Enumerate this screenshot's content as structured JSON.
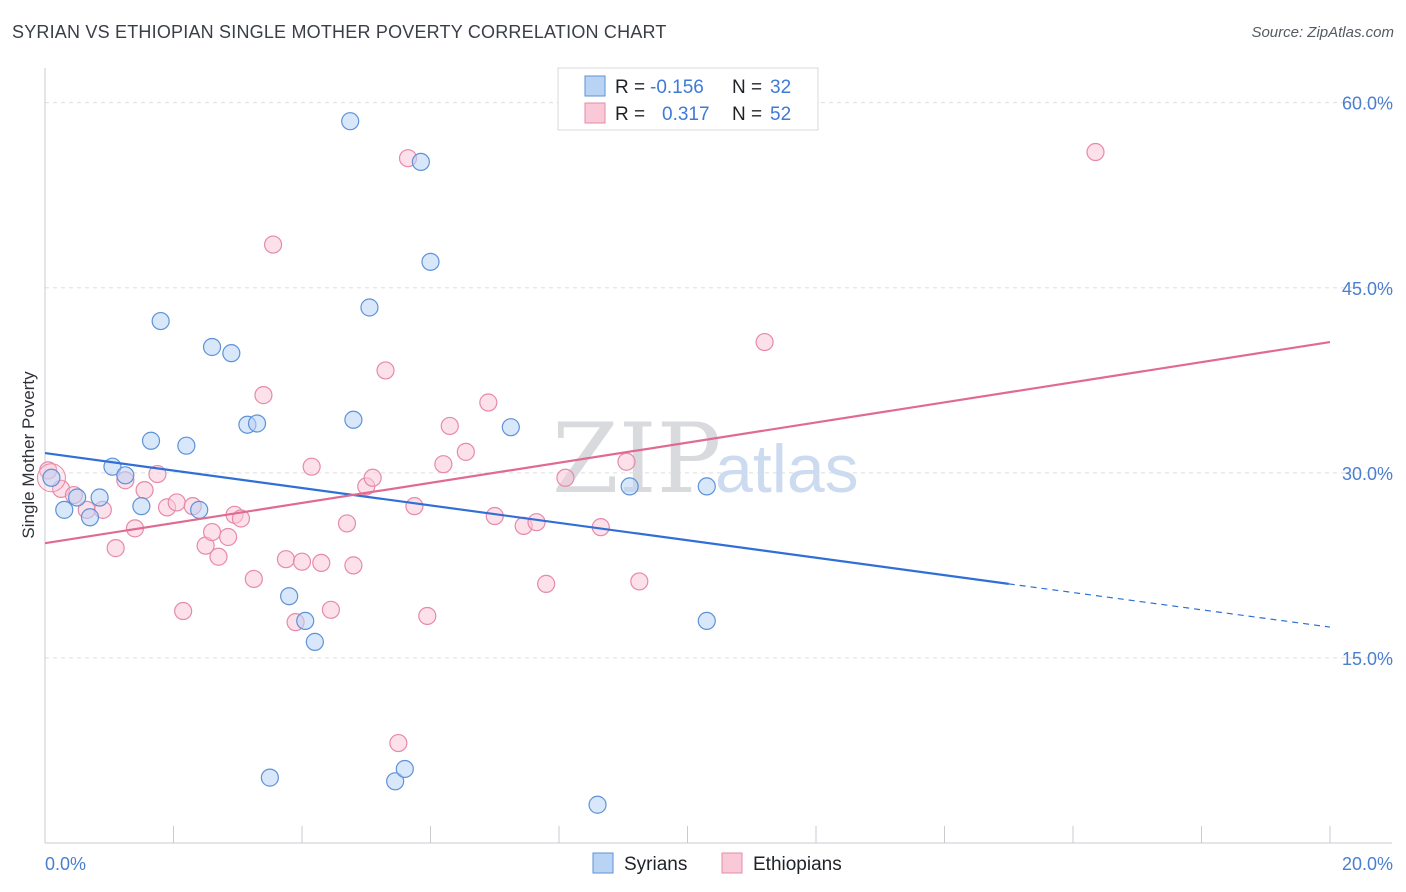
{
  "title": "SYRIAN VS ETHIOPIAN SINGLE MOTHER POVERTY CORRELATION CHART",
  "source": "Source: ZipAtlas.com",
  "watermark": {
    "zip": "ZIP",
    "atlas": "atlas"
  },
  "colors": {
    "syrian_fill": "#b9d3f5",
    "syrian_stroke": "#5e92d8",
    "syrian_line": "#2f6fd6",
    "ethiopian_fill": "#f9c9d8",
    "ethiopian_stroke": "#e68aa8",
    "ethiopian_line": "#e06a92",
    "axis_text": "#4a7fd0",
    "grid": "#dddddd"
  },
  "legend": {
    "syrian": {
      "r_label": "R =",
      "r_value": "-0.156",
      "n_label": "N =",
      "n_value": "32"
    },
    "ethiopian": {
      "r_label": "R =",
      "r_value": "0.317",
      "n_label": "N =",
      "n_value": "52"
    }
  },
  "bottom_legend": {
    "syrians": "Syrians",
    "ethiopians": "Ethiopians"
  },
  "chart_data": {
    "type": "scatter",
    "title": "SYRIAN VS ETHIOPIAN SINGLE MOTHER POVERTY CORRELATION CHART",
    "xlabel": "",
    "ylabel": "Single Mother Poverty",
    "xlim": [
      0,
      20
    ],
    "ylim": [
      0,
      62
    ],
    "x_ticks": [
      "0.0%",
      "20.0%"
    ],
    "y_ticks": [
      {
        "value": 15,
        "label": "15.0%"
      },
      {
        "value": 30,
        "label": "30.0%"
      },
      {
        "value": 45,
        "label": "45.0%"
      },
      {
        "value": 60,
        "label": "60.0%"
      }
    ],
    "grid": "horizontal dashed",
    "series": [
      {
        "name": "Syrians",
        "x": [
          0.1,
          0.3,
          0.5,
          0.7,
          0.85,
          1.05,
          1.25,
          1.5,
          1.65,
          1.8,
          2.2,
          2.4,
          2.6,
          2.9,
          3.15,
          3.3,
          3.5,
          3.8,
          4.05,
          4.2,
          4.75,
          5.05,
          5.45,
          5.6,
          5.85,
          6.0,
          7.25,
          8.6,
          9.1,
          10.3,
          10.3,
          4.8
        ],
        "y": [
          29.6,
          27.0,
          28.0,
          26.4,
          28.0,
          30.5,
          29.8,
          27.3,
          32.6,
          42.3,
          32.2,
          27.0,
          40.2,
          39.7,
          33.9,
          34.0,
          5.3,
          20.0,
          18.0,
          16.3,
          58.5,
          43.4,
          5.0,
          6.0,
          55.2,
          47.1,
          33.7,
          3.1,
          28.9,
          28.9,
          18.0,
          34.3
        ]
      },
      {
        "name": "Ethiopians",
        "x": [
          0.05,
          0.25,
          0.45,
          0.65,
          0.9,
          1.1,
          1.25,
          1.4,
          1.55,
          1.75,
          1.9,
          2.05,
          2.15,
          2.3,
          2.5,
          2.6,
          2.7,
          2.85,
          2.95,
          3.05,
          3.25,
          3.4,
          3.55,
          3.75,
          3.9,
          4.0,
          4.15,
          4.3,
          4.45,
          4.7,
          4.8,
          5.0,
          5.1,
          5.3,
          5.5,
          5.65,
          5.75,
          5.95,
          6.2,
          6.3,
          6.55,
          6.9,
          7.0,
          7.45,
          7.65,
          7.8,
          8.1,
          8.65,
          9.05,
          9.25,
          11.2,
          16.35
        ],
        "y": [
          30.2,
          28.7,
          28.2,
          27.0,
          27.0,
          23.9,
          29.4,
          25.5,
          28.6,
          29.9,
          27.2,
          27.6,
          18.8,
          27.3,
          24.1,
          25.2,
          23.2,
          24.8,
          26.6,
          26.3,
          21.4,
          36.3,
          48.5,
          23.0,
          17.9,
          22.8,
          30.5,
          22.7,
          18.9,
          25.9,
          22.5,
          28.9,
          29.6,
          38.3,
          8.1,
          55.5,
          27.3,
          18.4,
          30.7,
          33.8,
          31.7,
          35.7,
          26.5,
          25.7,
          26.0,
          21.0,
          29.6,
          25.6,
          30.9,
          21.2,
          40.6,
          56.0
        ]
      }
    ],
    "trend_lines": [
      {
        "series": "Syrians",
        "x_start": 0,
        "y_start": 31.6,
        "x_end_solid": 15.0,
        "y_end_solid": 21.0,
        "x_end": 20.0,
        "y_end": 17.5,
        "dashed_after": 15.0
      },
      {
        "series": "Ethiopians",
        "x_start": 0,
        "y_start": 24.3,
        "x_end": 20.0,
        "y_end": 40.6
      }
    ]
  }
}
